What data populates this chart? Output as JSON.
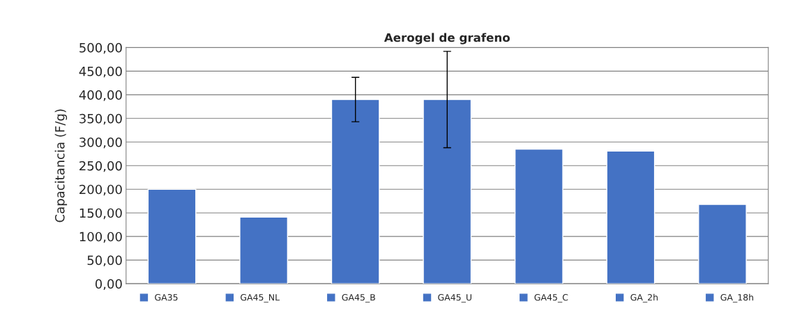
{
  "chart_data": {
    "type": "bar",
    "title": "Aerogel de grafeno",
    "ylabel": "Capacitancia (F/g)",
    "categories": [
      null,
      null,
      null,
      null,
      null,
      null,
      null
    ],
    "series": [
      {
        "name": "GA35",
        "color": "#4472c4",
        "values": [
          200,
          null,
          null,
          null,
          null,
          null,
          null
        ]
      },
      {
        "name": "GA45_NL",
        "color": "#4472c4",
        "values": [
          null,
          141,
          null,
          null,
          null,
          null,
          null
        ]
      },
      {
        "name": "GA45_B",
        "color": "#4472c4",
        "values": [
          null,
          null,
          390,
          null,
          null,
          null,
          null
        ],
        "errors": [
          null,
          null,
          47,
          null,
          null,
          null,
          null
        ]
      },
      {
        "name": "GA45_U",
        "color": "#4472c4",
        "values": [
          null,
          null,
          null,
          390,
          null,
          null,
          null
        ],
        "errors": [
          null,
          null,
          null,
          102,
          null,
          null,
          null
        ]
      },
      {
        "name": "GA45_C",
        "color": "#4472c4",
        "values": [
          null,
          null,
          null,
          null,
          285,
          null,
          null
        ]
      },
      {
        "name": "GA_2h",
        "color": "#4472c4",
        "values": [
          null,
          null,
          null,
          null,
          null,
          281,
          null
        ]
      },
      {
        "name": "GA_18h",
        "color": "#4472c4",
        "values": [
          null,
          null,
          null,
          null,
          null,
          null,
          168
        ]
      }
    ],
    "ylim": [
      0,
      500
    ],
    "yticks": [
      {
        "value": 0,
        "label": "0,00"
      },
      {
        "value": 50,
        "label": "50,00"
      },
      {
        "value": 100,
        "label": "100,00"
      },
      {
        "value": 150,
        "label": "150,00"
      },
      {
        "value": 200,
        "label": "200,00"
      },
      {
        "value": 250,
        "label": "250,00"
      },
      {
        "value": 300,
        "label": "300,00"
      },
      {
        "value": 350,
        "label": "350,00"
      },
      {
        "value": 400,
        "label": "400,00"
      },
      {
        "value": 450,
        "label": "450,00"
      },
      {
        "value": 500,
        "label": "500,00"
      }
    ],
    "grid": "y",
    "legend": "bottom",
    "tick_labels": "y"
  }
}
